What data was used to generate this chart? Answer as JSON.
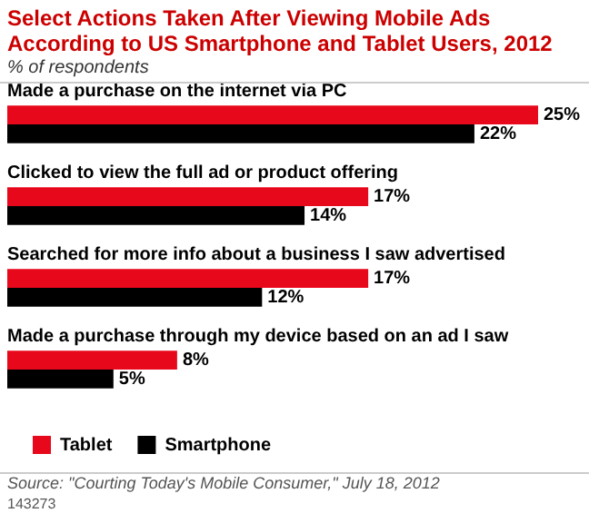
{
  "chart_data": {
    "type": "bar",
    "orientation": "horizontal",
    "title": "Select Actions Taken After Viewing Mobile Ads According to US Smartphone and Tablet Users, 2012",
    "subtitle": "% of respondents",
    "categories": [
      "Made a purchase on the internet via PC",
      "Clicked to view the full ad or product offering",
      "Searched for more info about a business I saw advertised",
      "Made a purchase through my device based on an ad I saw"
    ],
    "series": [
      {
        "name": "Tablet",
        "color": "#e8081c",
        "values": [
          25,
          17,
          17,
          8
        ],
        "value_labels": [
          "25%",
          "17%",
          "17%",
          "8%"
        ]
      },
      {
        "name": "Smartphone",
        "color": "#000000",
        "values": [
          22,
          14,
          12,
          5
        ],
        "value_labels": [
          "22%",
          "14%",
          "12%",
          "5%"
        ]
      }
    ],
    "legend": "bottom",
    "annotations": [
      "Source: \"Courting Today's Mobile Consumer,\" July 18, 2012",
      "143273"
    ]
  }
}
